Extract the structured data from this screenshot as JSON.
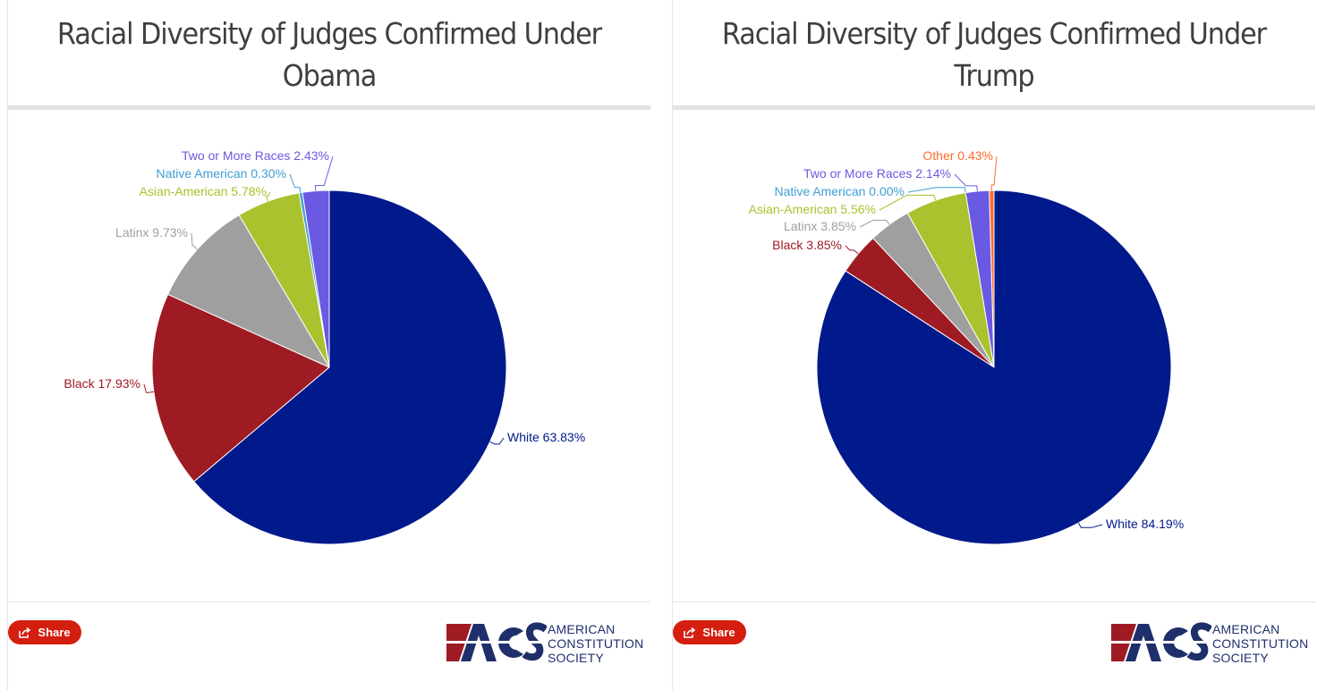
{
  "charts": [
    {
      "title": "Racial Diversity of Judges Confirmed Under Obama",
      "share_label": "Share",
      "logo": {
        "line1": "AMERICAN",
        "line2": "CONSTITUTION",
        "line3": "SOCIETY",
        "mark": "ACS"
      }
    },
    {
      "title": "Racial Diversity of Judges Confirmed Under Trump",
      "share_label": "Share",
      "logo": {
        "line1": "AMERICAN",
        "line2": "CONSTITUTION",
        "line3": "SOCIETY",
        "mark": "ACS"
      }
    }
  ],
  "colors": {
    "White": "#00198b",
    "Black": "#9e1b24",
    "Latinx": "#9f9f9f",
    "Asian-American": "#aac22e",
    "Native American": "#3f9ed4",
    "Two or More Races": "#6a59e2",
    "Other": "#ff6a2c"
  },
  "chart_data": [
    {
      "type": "pie",
      "title": "Racial Diversity of Judges Confirmed Under Obama",
      "slices": [
        {
          "label": "White",
          "value": 63.83,
          "display": "White 63.83%"
        },
        {
          "label": "Black",
          "value": 17.93,
          "display": "Black 17.93%"
        },
        {
          "label": "Latinx",
          "value": 9.73,
          "display": "Latinx 9.73%"
        },
        {
          "label": "Asian-American",
          "value": 5.78,
          "display": "Asian-American 5.78%"
        },
        {
          "label": "Native American",
          "value": 0.3,
          "display": "Native American 0.30%"
        },
        {
          "label": "Two or More Races",
          "value": 2.43,
          "display": "Two or More Races 2.43%"
        }
      ]
    },
    {
      "type": "pie",
      "title": "Racial Diversity of Judges Confirmed Under Trump",
      "slices": [
        {
          "label": "White",
          "value": 84.19,
          "display": "White 84.19%"
        },
        {
          "label": "Black",
          "value": 3.85,
          "display": "Black 3.85%"
        },
        {
          "label": "Latinx",
          "value": 3.85,
          "display": "Latinx 3.85%"
        },
        {
          "label": "Asian-American",
          "value": 5.56,
          "display": "Asian-American 5.56%"
        },
        {
          "label": "Native American",
          "value": 0.0,
          "display": "Native American 0.00%"
        },
        {
          "label": "Two or More Races",
          "value": 2.14,
          "display": "Two or More Races 2.14%"
        },
        {
          "label": "Other",
          "value": 0.43,
          "display": "Other 0.43%"
        }
      ]
    }
  ]
}
